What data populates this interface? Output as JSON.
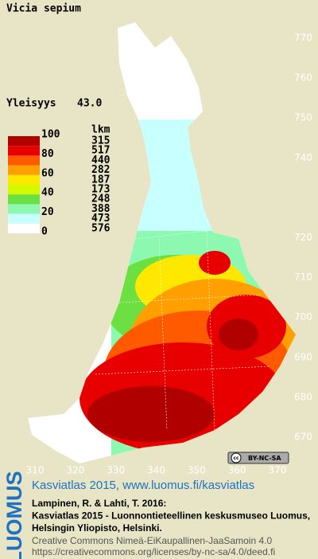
{
  "title": "Vicia sepium",
  "frequency": {
    "label": "Yleisyys",
    "value": "43.0"
  },
  "legend": {
    "count_header": "lkm",
    "scale_labels": [
      "100",
      "80",
      "60",
      "40",
      "20",
      "0"
    ],
    "classes": [
      {
        "color": "#b00000",
        "count": "315"
      },
      {
        "color": "#e80000",
        "count": "517"
      },
      {
        "color": "#ff5a00",
        "count": "440"
      },
      {
        "color": "#ffa000",
        "count": "282"
      },
      {
        "color": "#ffe800",
        "count": "187"
      },
      {
        "color": "#d4f800",
        "count": "173"
      },
      {
        "color": "#6ce040",
        "count": "248"
      },
      {
        "color": "#8cf8b0",
        "count": "388"
      },
      {
        "color": "#c8ffff",
        "count": "473"
      },
      {
        "color": "#ffffff",
        "count": "576"
      }
    ]
  },
  "map": {
    "yticks": [
      770,
      760,
      750,
      740,
      720,
      710,
      700,
      690,
      680,
      670
    ],
    "xticks": [
      310,
      320,
      330,
      340,
      350,
      360,
      370
    ],
    "license_badge": "BY-NC-SA"
  },
  "footer": {
    "side_logo": "LUOMUS",
    "link": "Kasviatlas 2015, www.luomus.fi/kasviatlas",
    "citation": [
      "Lampinen, R. & Lahti, T. 2016:",
      "Kasviatlas 2015 - Luonnontieteellinen keskusmuseo Luomus,",
      "Helsingin Yliopisto, Helsinki."
    ],
    "license": [
      "Creative Commons Nimeä-EiKaupallinen-JaaSamoin 4.0",
      "https://creativecommons.org/licenses/by-nc-sa/4.0/deed.fi"
    ]
  }
}
